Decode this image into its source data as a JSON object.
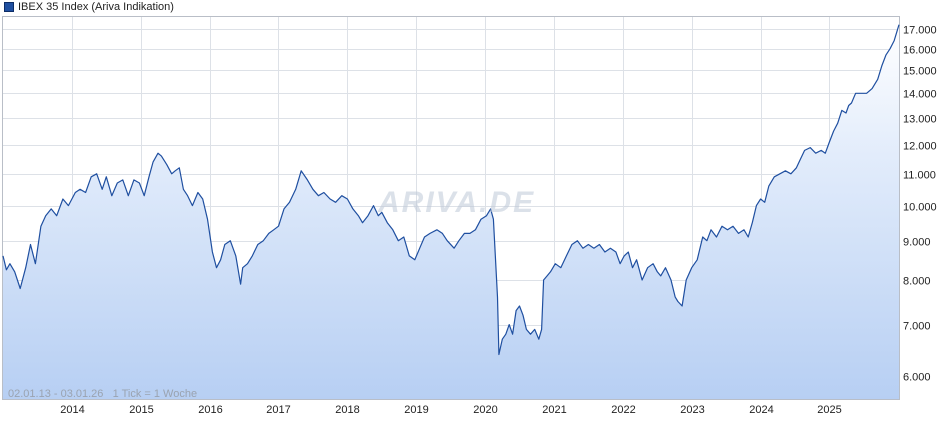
{
  "legend": {
    "label": "IBEX 35 Index (Ariva Indikation)",
    "color": "#1f4fa0"
  },
  "watermark": "ARIVA.DE",
  "period_label": "02.01.13 - 03.01.26",
  "tick_label": "1 Tick = 1 Woche",
  "chart_data": {
    "type": "area",
    "title": "IBEX 35 Index (Ariva Indikation)",
    "y_scale": "log",
    "ylim": [
      5600,
      17600
    ],
    "xlim": [
      2013.0,
      2026.01
    ],
    "grid": true,
    "legend_position": "top-left",
    "y_ticks": [
      {
        "value": 6000,
        "label": "6.000"
      },
      {
        "value": 7000,
        "label": "7.000"
      },
      {
        "value": 8000,
        "label": "8.000"
      },
      {
        "value": 9000,
        "label": "9.000"
      },
      {
        "value": 10000,
        "label": "10.000"
      },
      {
        "value": 11000,
        "label": "11.000"
      },
      {
        "value": 12000,
        "label": "12.000"
      },
      {
        "value": 13000,
        "label": "13.000"
      },
      {
        "value": 14000,
        "label": "14.000"
      },
      {
        "value": 15000,
        "label": "15.000"
      },
      {
        "value": 16000,
        "label": "16.000"
      },
      {
        "value": 17000,
        "label": "17.000"
      }
    ],
    "x_ticks": [
      {
        "value": 2014,
        "label": "2014"
      },
      {
        "value": 2015,
        "label": "2015"
      },
      {
        "value": 2016,
        "label": "2016"
      },
      {
        "value": 2017,
        "label": "2017"
      },
      {
        "value": 2018,
        "label": "2018"
      },
      {
        "value": 2019,
        "label": "2019"
      },
      {
        "value": 2020,
        "label": "2020"
      },
      {
        "value": 2021,
        "label": "2021"
      },
      {
        "value": 2022,
        "label": "2022"
      },
      {
        "value": 2023,
        "label": "2023"
      },
      {
        "value": 2024,
        "label": "2024"
      },
      {
        "value": 2025,
        "label": "2025"
      }
    ],
    "series": [
      {
        "name": "IBEX 35 Index (Ariva Indikation)",
        "color": "#1f4fa0",
        "x": [
          2013.0,
          2013.05,
          2013.1,
          2013.17,
          2013.25,
          2013.33,
          2013.4,
          2013.47,
          2013.55,
          2013.62,
          2013.7,
          2013.78,
          2013.87,
          2013.95,
          2014.05,
          2014.12,
          2014.2,
          2014.28,
          2014.36,
          2014.44,
          2014.5,
          2014.58,
          2014.66,
          2014.74,
          2014.82,
          2014.9,
          2014.98,
          2015.05,
          2015.12,
          2015.18,
          2015.25,
          2015.3,
          2015.38,
          2015.45,
          2015.5,
          2015.56,
          2015.62,
          2015.68,
          2015.75,
          2015.83,
          2015.9,
          2015.97,
          2016.04,
          2016.1,
          2016.16,
          2016.22,
          2016.3,
          2016.38,
          2016.45,
          2016.48,
          2016.55,
          2016.62,
          2016.7,
          2016.78,
          2016.86,
          2016.93,
          2017.0,
          2017.08,
          2017.16,
          2017.25,
          2017.33,
          2017.42,
          2017.5,
          2017.58,
          2017.66,
          2017.75,
          2017.83,
          2017.92,
          2018.0,
          2018.08,
          2018.16,
          2018.22,
          2018.3,
          2018.38,
          2018.45,
          2018.5,
          2018.58,
          2018.66,
          2018.74,
          2018.82,
          2018.9,
          2018.98,
          2019.05,
          2019.12,
          2019.2,
          2019.3,
          2019.38,
          2019.45,
          2019.55,
          2019.62,
          2019.7,
          2019.78,
          2019.86,
          2019.94,
          2020.02,
          2020.08,
          2020.12,
          2020.18,
          2020.2,
          2020.25,
          2020.3,
          2020.35,
          2020.4,
          2020.45,
          2020.5,
          2020.55,
          2020.6,
          2020.66,
          2020.72,
          2020.78,
          2020.82,
          2020.85,
          2020.9,
          2020.95,
          2021.02,
          2021.1,
          2021.18,
          2021.26,
          2021.34,
          2021.42,
          2021.5,
          2021.58,
          2021.66,
          2021.74,
          2021.82,
          2021.9,
          2021.96,
          2022.02,
          2022.08,
          2022.14,
          2022.2,
          2022.28,
          2022.36,
          2022.44,
          2022.5,
          2022.55,
          2022.62,
          2022.7,
          2022.76,
          2022.8,
          2022.86,
          2022.92,
          2023.0,
          2023.08,
          2023.16,
          2023.22,
          2023.28,
          2023.36,
          2023.44,
          2023.52,
          2023.6,
          2023.68,
          2023.76,
          2023.82,
          2023.88,
          2023.94,
          2024.0,
          2024.06,
          2024.12,
          2024.2,
          2024.28,
          2024.36,
          2024.44,
          2024.52,
          2024.58,
          2024.64,
          2024.72,
          2024.8,
          2024.88,
          2024.94,
          2025.0,
          2025.06,
          2025.12,
          2025.18,
          2025.24,
          2025.28,
          2025.32,
          2025.38,
          2025.46,
          2025.54,
          2025.62,
          2025.7,
          2025.76,
          2025.82,
          2025.88,
          2025.94,
          2026.01
        ],
        "values": [
          8600,
          8250,
          8400,
          8200,
          7800,
          8300,
          8900,
          8400,
          9400,
          9700,
          9900,
          9700,
          10200,
          10000,
          10400,
          10500,
          10400,
          10900,
          11000,
          10500,
          10900,
          10300,
          10700,
          10800,
          10300,
          10800,
          10700,
          10300,
          10900,
          11400,
          11700,
          11600,
          11300,
          11000,
          11100,
          11200,
          10500,
          10300,
          10000,
          10400,
          10200,
          9600,
          8700,
          8300,
          8500,
          8900,
          9000,
          8600,
          7900,
          8300,
          8400,
          8600,
          8900,
          9000,
          9200,
          9300,
          9400,
          9900,
          10100,
          10500,
          11100,
          10800,
          10500,
          10300,
          10400,
          10200,
          10100,
          10300,
          10200,
          9900,
          9700,
          9500,
          9700,
          10000,
          9700,
          9800,
          9500,
          9300,
          9000,
          9100,
          8600,
          8500,
          8800,
          9100,
          9200,
          9300,
          9200,
          9000,
          8800,
          9000,
          9200,
          9200,
          9300,
          9600,
          9700,
          9900,
          9600,
          7600,
          6400,
          6700,
          6800,
          7000,
          6800,
          7300,
          7400,
          7200,
          6900,
          6800,
          6900,
          6700,
          6900,
          8000,
          8100,
          8200,
          8400,
          8300,
          8600,
          8900,
          9000,
          8800,
          8900,
          8800,
          8900,
          8700,
          8800,
          8700,
          8400,
          8600,
          8700,
          8300,
          8500,
          8000,
          8300,
          8400,
          8200,
          8100,
          8300,
          8000,
          7600,
          7500,
          7400,
          8000,
          8300,
          8500,
          9100,
          9000,
          9300,
          9100,
          9400,
          9300,
          9400,
          9200,
          9300,
          9100,
          9500,
          10000,
          10200,
          10100,
          10600,
          10900,
          11000,
          11100,
          11000,
          11200,
          11500,
          11800,
          11900,
          11700,
          11800,
          11700,
          12100,
          12500,
          12800,
          13300,
          13200,
          13500,
          13600,
          14000,
          14000,
          14000,
          14200,
          14600,
          15200,
          15700,
          16000,
          16400,
          17200
        ]
      }
    ]
  }
}
